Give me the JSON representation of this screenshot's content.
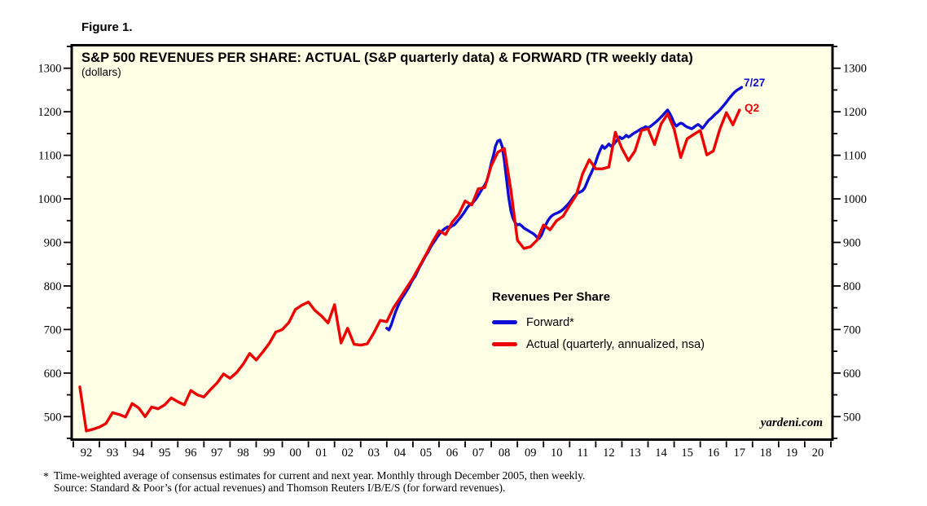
{
  "figure_label": "Figure 1.",
  "chart": {
    "title": "S&P 500 REVENUES PER SHARE: ACTUAL (S&P quarterly data) & FORWARD (TR weekly data)",
    "subtitle": "(dollars)",
    "watermark": "yardeni.com",
    "plot_background": "#ffffe6",
    "legend": {
      "title": "Revenues Per Share",
      "items": [
        {
          "label": "Forward*",
          "color": "#0d0dd6"
        },
        {
          "label": "Actual (quarterly, annualized, nsa)",
          "color": "#ee0000"
        }
      ]
    },
    "annotations": [
      {
        "text": "7/27",
        "color": "#0d0dd6"
      },
      {
        "text": "Q2",
        "color": "#ee0000"
      }
    ]
  },
  "footnote": {
    "marker": "*",
    "line1": "Time-weighted average of consensus estimates for current and next year. Monthly through December 2005, then weekly.",
    "line2": "Source: Standard & Poor’s (for actual revenues) and Thomson Reuters I/B/E/S (for forward revenues)."
  },
  "chart_data": {
    "type": "line",
    "title": "S&P 500 REVENUES PER SHARE: ACTUAL (S&P quarterly data) & FORWARD (TR weekly data)",
    "ylabel": "dollars",
    "xlim": [
      1992,
      2021
    ],
    "ylim": [
      450,
      1350
    ],
    "y_major_step": 100,
    "y_minor_step": 50,
    "grid": false,
    "legend_position": "inside-middle-right",
    "x_tick_years": [
      "92",
      "93",
      "94",
      "95",
      "96",
      "97",
      "98",
      "99",
      "00",
      "01",
      "02",
      "03",
      "04",
      "05",
      "06",
      "07",
      "08",
      "09",
      "10",
      "11",
      "12",
      "13",
      "14",
      "15",
      "16",
      "17",
      "18",
      "19",
      "20"
    ],
    "series": [
      {
        "name": "Forward*",
        "color": "#0d0dd6",
        "end_label": "7/27",
        "x_start": 2004.0,
        "x_step": 0.0833333,
        "values": [
          703,
          699,
          710,
          725,
          740,
          752,
          764,
          772,
          780,
          788,
          796,
          806,
          815,
          822,
          832,
          843,
          852,
          861,
          870,
          878,
          888,
          896,
          903,
          911,
          918,
          924,
          929,
          933,
          936,
          934,
          938,
          940,
          946,
          952,
          958,
          965,
          972,
          980,
          986,
          989,
          994,
          1000,
          1008,
          1016,
          1024,
          1032,
          1042,
          1060,
          1082,
          1100,
          1122,
          1133,
          1135,
          1120,
          1088,
          1045,
          1003,
          972,
          955,
          945,
          940,
          942,
          938,
          933,
          930,
          927,
          924,
          921,
          917,
          912,
          909,
          916,
          928,
          940,
          950,
          957,
          962,
          965,
          967,
          969,
          972,
          976,
          981,
          986,
          992,
          999,
          1006,
          1011,
          1014,
          1016,
          1019,
          1026,
          1038,
          1050,
          1060,
          1072,
          1085,
          1100,
          1112,
          1122,
          1116,
          1120,
          1126,
          1121,
          1124,
          1130,
          1136,
          1142,
          1138,
          1141,
          1146,
          1142,
          1145,
          1149,
          1152,
          1155,
          1158,
          1161,
          1163,
          1166,
          1163,
          1166,
          1170,
          1174,
          1178,
          1183,
          1188,
          1193,
          1199,
          1204,
          1196,
          1186,
          1174,
          1167,
          1171,
          1174,
          1172,
          1168,
          1165,
          1163,
          1161,
          1164,
          1168,
          1171,
          1167,
          1162,
          1168,
          1175,
          1181,
          1185,
          1190,
          1195,
          1199,
          1204,
          1210,
          1216,
          1222,
          1229,
          1235,
          1241,
          1246,
          1250,
          1253,
          1256
        ]
      },
      {
        "name": "Actual (quarterly, annualized, nsa)",
        "color": "#ee0000",
        "end_label": "Q2",
        "x_start": 1992.25,
        "x_step": 0.25,
        "values": [
          568,
          467,
          471,
          476,
          484,
          509,
          505,
          499,
          530,
          520,
          500,
          522,
          518,
          527,
          543,
          534,
          527,
          560,
          550,
          545,
          562,
          577,
          598,
          588,
          601,
          620,
          645,
          630,
          648,
          668,
          694,
          700,
          716,
          746,
          756,
          763,
          744,
          731,
          715,
          757,
          669,
          703,
          666,
          664,
          667,
          692,
          721,
          718,
          749,
          772,
          795,
          818,
          845,
          872,
          901,
          927,
          918,
          946,
          964,
          995,
          986,
          1023,
          1026,
          1076,
          1107,
          1116,
          1020,
          905,
          886,
          890,
          905,
          940,
          929,
          950,
          960,
          985,
          1008,
          1058,
          1090,
          1069,
          1069,
          1073,
          1153,
          1116,
          1088,
          1110,
          1157,
          1161,
          1125,
          1172,
          1195,
          1160,
          1095,
          1138,
          1148,
          1157,
          1101,
          1110,
          1160,
          1198,
          1170,
          1204
        ]
      }
    ]
  }
}
